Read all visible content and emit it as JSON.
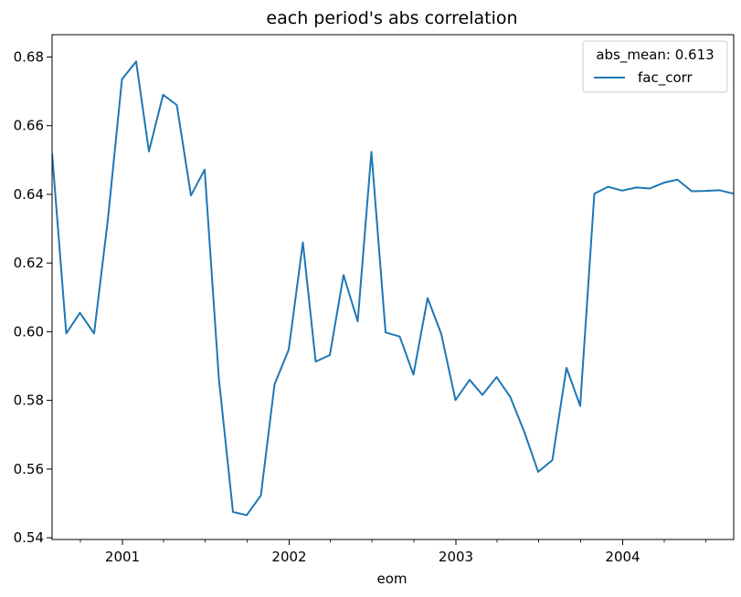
{
  "chart_data": {
    "type": "line",
    "title": "each period's abs correlation",
    "xlabel": "eom",
    "ylabel": "",
    "legend": {
      "title": "abs_mean: 0.613",
      "placement": "top-right",
      "entries": [
        "fac_corr"
      ]
    },
    "ylim": [
      0.5395,
      0.6865
    ],
    "y_ticks": [
      0.54,
      0.56,
      0.58,
      0.6,
      0.62,
      0.64,
      0.66,
      0.68
    ],
    "y_tick_labels": [
      "0.54",
      "0.56",
      "0.58",
      "0.60",
      "0.62",
      "0.64",
      "0.66",
      "0.68"
    ],
    "xlim": [
      "2000-07-31",
      "2004-08-31"
    ],
    "x_ticks": [
      "2001-01",
      "2002-01",
      "2003-01",
      "2004-01"
    ],
    "x_tick_labels": [
      "2001",
      "2002",
      "2003",
      "2004"
    ],
    "x_minor_tick_months": 1,
    "grid": false,
    "series": [
      {
        "name": "fac_corr",
        "color": "#1f77b4",
        "x": [
          "2000-07-31",
          "2000-08-31",
          "2000-09-30",
          "2000-10-31",
          "2000-11-30",
          "2000-12-31",
          "2001-01-31",
          "2001-02-28",
          "2001-03-31",
          "2001-04-30",
          "2001-05-31",
          "2001-06-30",
          "2001-07-31",
          "2001-08-31",
          "2001-09-30",
          "2001-10-31",
          "2001-11-30",
          "2001-12-31",
          "2002-01-31",
          "2002-02-28",
          "2002-03-31",
          "2002-04-30",
          "2002-05-31",
          "2002-06-30",
          "2002-07-31",
          "2002-08-31",
          "2002-09-30",
          "2002-10-31",
          "2002-11-30",
          "2002-12-31",
          "2003-01-31",
          "2003-02-28",
          "2003-03-31",
          "2003-04-30",
          "2003-05-31",
          "2003-06-30",
          "2003-07-31",
          "2003-08-31",
          "2003-09-30",
          "2003-10-31",
          "2003-11-30",
          "2003-12-31",
          "2004-01-31",
          "2004-02-29",
          "2004-03-31",
          "2004-04-30",
          "2004-05-31",
          "2004-06-30",
          "2004-07-31",
          "2004-08-31"
        ],
        "values": [
          0.652,
          0.5995,
          0.6055,
          0.5995,
          0.6325,
          0.6735,
          0.6787,
          0.6525,
          0.669,
          0.666,
          0.6397,
          0.6472,
          0.5865,
          0.5475,
          0.5466,
          0.5523,
          0.5847,
          0.5948,
          0.626,
          0.5913,
          0.5932,
          0.6165,
          0.603,
          0.6524,
          0.5998,
          0.5986,
          0.5875,
          0.6098,
          0.5993,
          0.5801,
          0.586,
          0.5816,
          0.5868,
          0.581,
          0.5707,
          0.5592,
          0.5626,
          0.5895,
          0.5784,
          0.6402,
          0.6422,
          0.6411,
          0.642,
          0.6417,
          0.6434,
          0.6443,
          0.6409,
          0.641,
          0.6412,
          0.6402
        ]
      }
    ]
  }
}
